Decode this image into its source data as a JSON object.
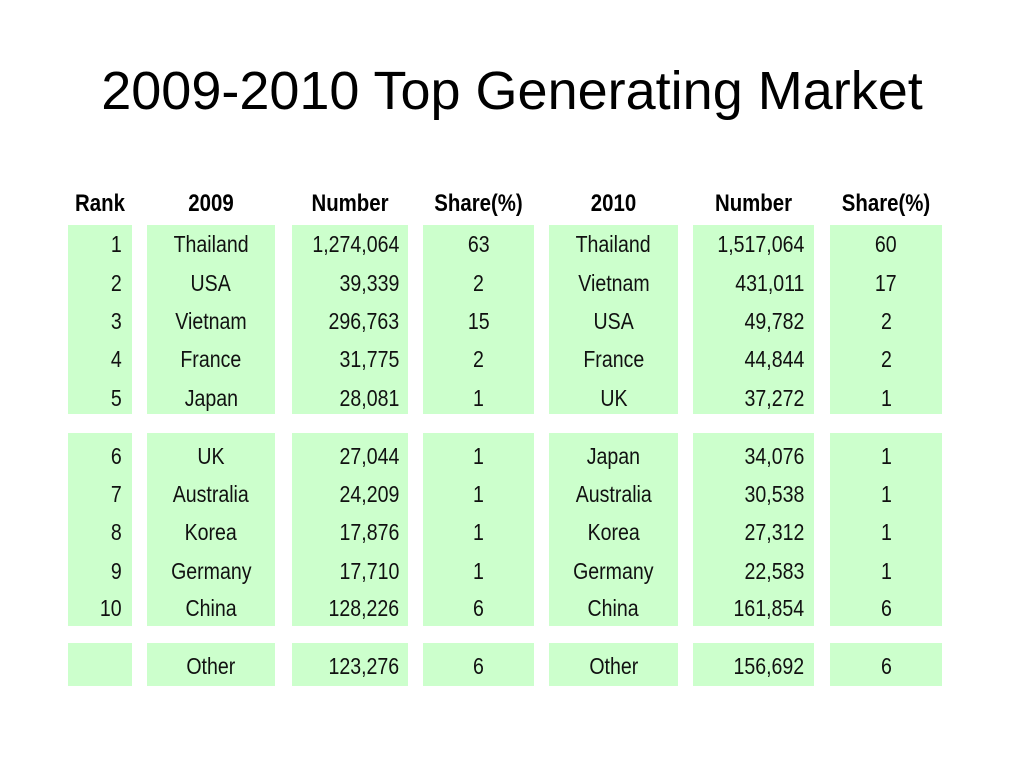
{
  "title": "2009-2010 Top Generating Market",
  "headers": {
    "rank": "Rank",
    "year2009": "2009",
    "number2009": "Number",
    "share2009": "Share(%)",
    "year2010": "2010",
    "number2010": "Number",
    "share2010": "Share(%)"
  },
  "colors": {
    "cell_fill": "#ccffcc"
  },
  "rows": [
    {
      "rank": "1",
      "c2009": "Thailand",
      "n2009": "1,274,064",
      "s2009": "63",
      "c2010": "Thailand",
      "n2010": "1,517,064",
      "s2010": "60"
    },
    {
      "rank": "2",
      "c2009": "USA",
      "n2009": "39,339",
      "s2009": "2",
      "c2010": "Vietnam",
      "n2010": "431,011",
      "s2010": "17"
    },
    {
      "rank": "3",
      "c2009": "Vietnam",
      "n2009": "296,763",
      "s2009": "15",
      "c2010": "USA",
      "n2010": "49,782",
      "s2010": "2"
    },
    {
      "rank": "4",
      "c2009": "France",
      "n2009": "31,775",
      "s2009": "2",
      "c2010": "France",
      "n2010": "44,844",
      "s2010": "2"
    },
    {
      "rank": "5",
      "c2009": "Japan",
      "n2009": "28,081",
      "s2009": "1",
      "c2010": "UK",
      "n2010": "37,272",
      "s2010": "1"
    },
    {
      "rank": "6",
      "c2009": "UK",
      "n2009": "27,044",
      "s2009": "1",
      "c2010": "Japan",
      "n2010": "34,076",
      "s2010": "1"
    },
    {
      "rank": "7",
      "c2009": "Australia",
      "n2009": "24,209",
      "s2009": "1",
      "c2010": "Australia",
      "n2010": "30,538",
      "s2010": "1"
    },
    {
      "rank": "8",
      "c2009": "Korea",
      "n2009": "17,876",
      "s2009": "1",
      "c2010": "Korea",
      "n2010": "27,312",
      "s2010": "1"
    },
    {
      "rank": "9",
      "c2009": "Germany",
      "n2009": "17,710",
      "s2009": "1",
      "c2010": "Germany",
      "n2010": "22,583",
      "s2010": "1"
    },
    {
      "rank": "10",
      "c2009": "China",
      "n2009": "128,226",
      "s2009": "6",
      "c2010": "China",
      "n2010": "161,854",
      "s2010": "6"
    },
    {
      "rank": "",
      "c2009": "Other",
      "n2009": "123,276",
      "s2009": "6",
      "c2010": "Other",
      "n2010": "156,692",
      "s2010": "6"
    }
  ]
}
